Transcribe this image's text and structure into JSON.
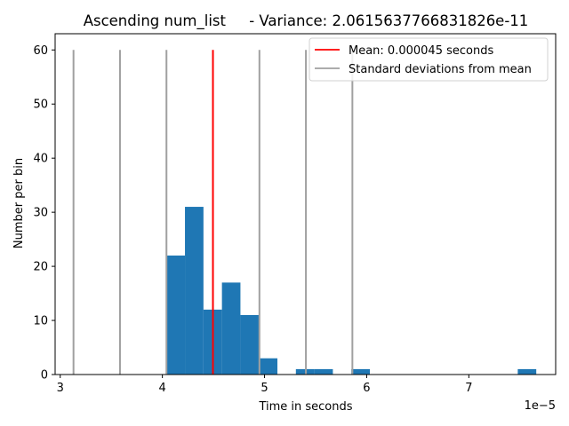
{
  "chart_data": {
    "type": "bar",
    "title": "Ascending num_list     - Variance: 2.0615637766831826e-11",
    "xlabel": "Time in seconds",
    "ylabel": "Number per bin",
    "x_offset_label": "1e−5",
    "xlim": [
      2.95,
      7.85
    ],
    "ylim": [
      0,
      63
    ],
    "x_ticks": [
      3,
      4,
      5,
      6,
      7
    ],
    "y_ticks": [
      0,
      10,
      20,
      30,
      40,
      50,
      60
    ],
    "bin_width": 0.181,
    "bins": [
      {
        "x0": 4.04,
        "count": 22
      },
      {
        "x0": 4.221,
        "count": 31
      },
      {
        "x0": 4.402,
        "count": 12
      },
      {
        "x0": 4.583,
        "count": 17
      },
      {
        "x0": 4.764,
        "count": 11
      },
      {
        "x0": 4.945,
        "count": 3
      },
      {
        "x0": 5.126,
        "count": 0
      },
      {
        "x0": 5.307,
        "count": 1
      },
      {
        "x0": 5.488,
        "count": 1
      },
      {
        "x0": 5.669,
        "count": 0
      },
      {
        "x0": 5.85,
        "count": 1
      },
      {
        "x0": 7.479,
        "count": 1
      }
    ],
    "mean_line": {
      "x": 4.495,
      "height": 60,
      "color": "#ff0000",
      "label": "Mean: 0.000045 seconds"
    },
    "std_lines": {
      "x": [
        3.13,
        3.585,
        4.04,
        4.95,
        5.405,
        5.86
      ],
      "height": 60,
      "color": "#a0a0a0",
      "label": "Standard deviations from mean"
    },
    "bar_color": "#1f77b4",
    "legend_position": "top-right",
    "grid": false
  }
}
